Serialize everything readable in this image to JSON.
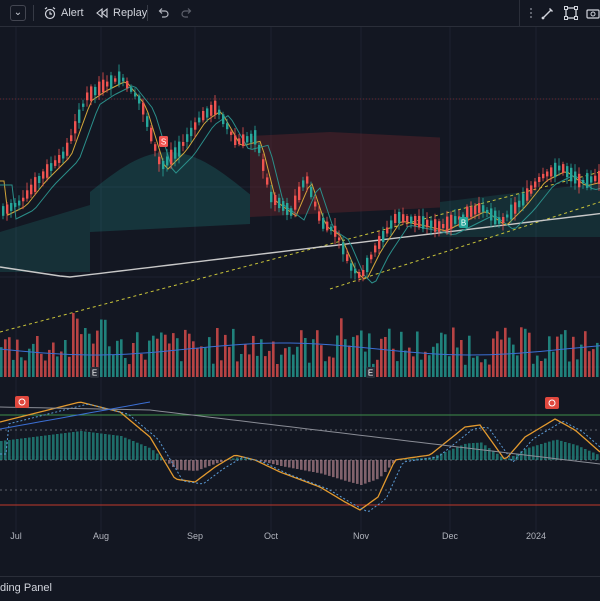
{
  "toolbar": {
    "chevron_label": "⌄",
    "alert_label": "Alert",
    "replay_label": "Replay"
  },
  "chart_data": {
    "type": "candlestick",
    "x_ticks": [
      "Jul",
      "Aug",
      "Sep",
      "Oct",
      "Nov",
      "Dec",
      "2024"
    ],
    "event_markers": {
      "earnings": "E",
      "sell": "S",
      "buy": "B"
    },
    "grid": true
  },
  "bottom": {
    "panel_label": "ding Panel"
  },
  "colors": {
    "background": "#131722",
    "up": "#26a69a",
    "down": "#ef5350",
    "ma_long": "#c8c8c8",
    "ma_short": "#d4a73a",
    "trend_dash": "#c9c43a"
  }
}
